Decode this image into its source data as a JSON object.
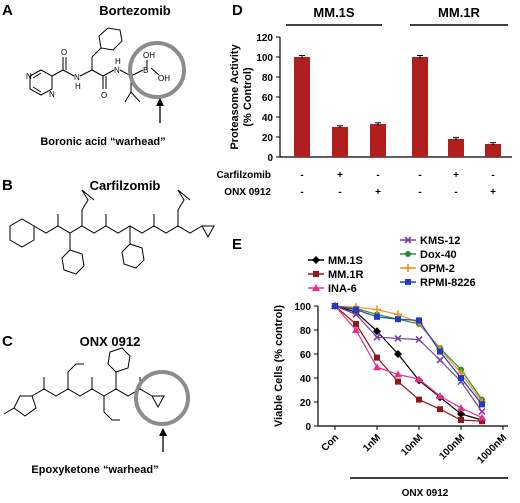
{
  "panels": {
    "a": {
      "letter": "A",
      "title": "Bortezomib",
      "annotation": "Boronic acid “warhead”",
      "atoms": {
        "o1": "O",
        "o2": "O",
        "o3": "O",
        "o4": "OH",
        "o5": "OH",
        "b": "B",
        "n1": "N",
        "n2": "N",
        "n3": "N",
        "n4": "N",
        "h1": "H",
        "h2": "H"
      }
    },
    "b": {
      "letter": "B",
      "title": "Carfilzomib"
    },
    "c": {
      "letter": "C",
      "title": "ONX 0912",
      "annotation": "Epoxyketone “warhead”"
    },
    "d": {
      "letter": "D"
    },
    "e": {
      "letter": "E"
    }
  },
  "chart_data": [
    {
      "type": "bar",
      "panel": "D",
      "groups": [
        "MM.1S",
        "MM.1R"
      ],
      "categories": [
        "MM.1S control",
        "MM.1S carfilzomib",
        "MM.1S ONX 0912",
        "MM.1R control",
        "MM.1R carfilzomib",
        "MM.1R ONX 0912"
      ],
      "values": [
        100,
        30,
        33,
        100,
        18,
        13
      ],
      "errors": [
        1.5,
        1.2,
        1.2,
        1.5,
        1.3,
        1.3
      ],
      "treatment_rows": [
        {
          "label": "Carfilzomib",
          "signs": [
            "-",
            "+",
            "-",
            "-",
            "+",
            "-"
          ]
        },
        {
          "label": "ONX 0912",
          "signs": [
            "-",
            "-",
            "+",
            "-",
            "-",
            "+"
          ]
        }
      ],
      "ylabel_line1": "Proteasome Activity",
      "ylabel_line2": "(% Control)",
      "ylim": [
        0,
        120
      ],
      "yticks": [
        0,
        20,
        40,
        60,
        80,
        100,
        120
      ],
      "bar_color": "#b01e1e"
    },
    {
      "type": "line",
      "panel": "E",
      "x": [
        "Con",
        "1nM",
        "10nM",
        "100nM",
        "1000nM"
      ],
      "xpos": [
        0,
        1,
        2,
        3,
        4
      ],
      "ylabel": "Viable Cells (% control)",
      "xlabel": "ONX 0912",
      "ylim": [
        0,
        100
      ],
      "yticks": [
        0,
        20,
        40,
        60,
        80,
        100
      ],
      "series": [
        {
          "name": "MM.1S",
          "color": "#000000",
          "marker": "diamond",
          "x": [
            0,
            0.5,
            1,
            1.5,
            2,
            2.5,
            3,
            3.5
          ],
          "values": [
            100,
            95,
            79,
            60,
            38,
            24,
            10,
            5
          ]
        },
        {
          "name": "MM.1R",
          "color": "#8b1a1a",
          "marker": "square",
          "x": [
            0,
            0.5,
            1,
            1.5,
            2,
            2.5,
            3,
            3.5
          ],
          "values": [
            100,
            85,
            57,
            37,
            22,
            14,
            5,
            4
          ]
        },
        {
          "name": "INA-6",
          "color": "#e8308a",
          "marker": "triangle",
          "x": [
            0,
            0.5,
            1,
            1.5,
            2,
            2.5,
            3,
            3.5
          ],
          "values": [
            100,
            80,
            49,
            43,
            39,
            25,
            15,
            7
          ]
        },
        {
          "name": "KMS-12",
          "color": "#7b3fa0",
          "marker": "x",
          "x": [
            0,
            0.5,
            1,
            1.5,
            2,
            2.5,
            3,
            3.5
          ],
          "values": [
            100,
            93,
            74,
            73,
            72,
            55,
            37,
            12
          ]
        },
        {
          "name": "Dox-40",
          "color": "#2e8b2e",
          "marker": "circle",
          "x": [
            0,
            0.5,
            1,
            1.5,
            2,
            2.5,
            3,
            3.5
          ],
          "values": [
            100,
            98,
            93,
            89,
            85,
            65,
            47,
            22
          ]
        },
        {
          "name": "OPM-2",
          "color": "#f0901e",
          "marker": "plus",
          "x": [
            0,
            0.5,
            1,
            1.5,
            2,
            2.5,
            3,
            3.5
          ],
          "values": [
            100,
            99,
            97,
            93,
            86,
            64,
            44,
            20
          ]
        },
        {
          "name": "RPMI-8226",
          "color": "#1e3cc8",
          "marker": "square",
          "x": [
            0,
            0.5,
            1,
            1.5,
            2,
            2.5,
            3,
            3.5
          ],
          "values": [
            100,
            97,
            91,
            89,
            88,
            62,
            40,
            18
          ]
        }
      ]
    }
  ]
}
